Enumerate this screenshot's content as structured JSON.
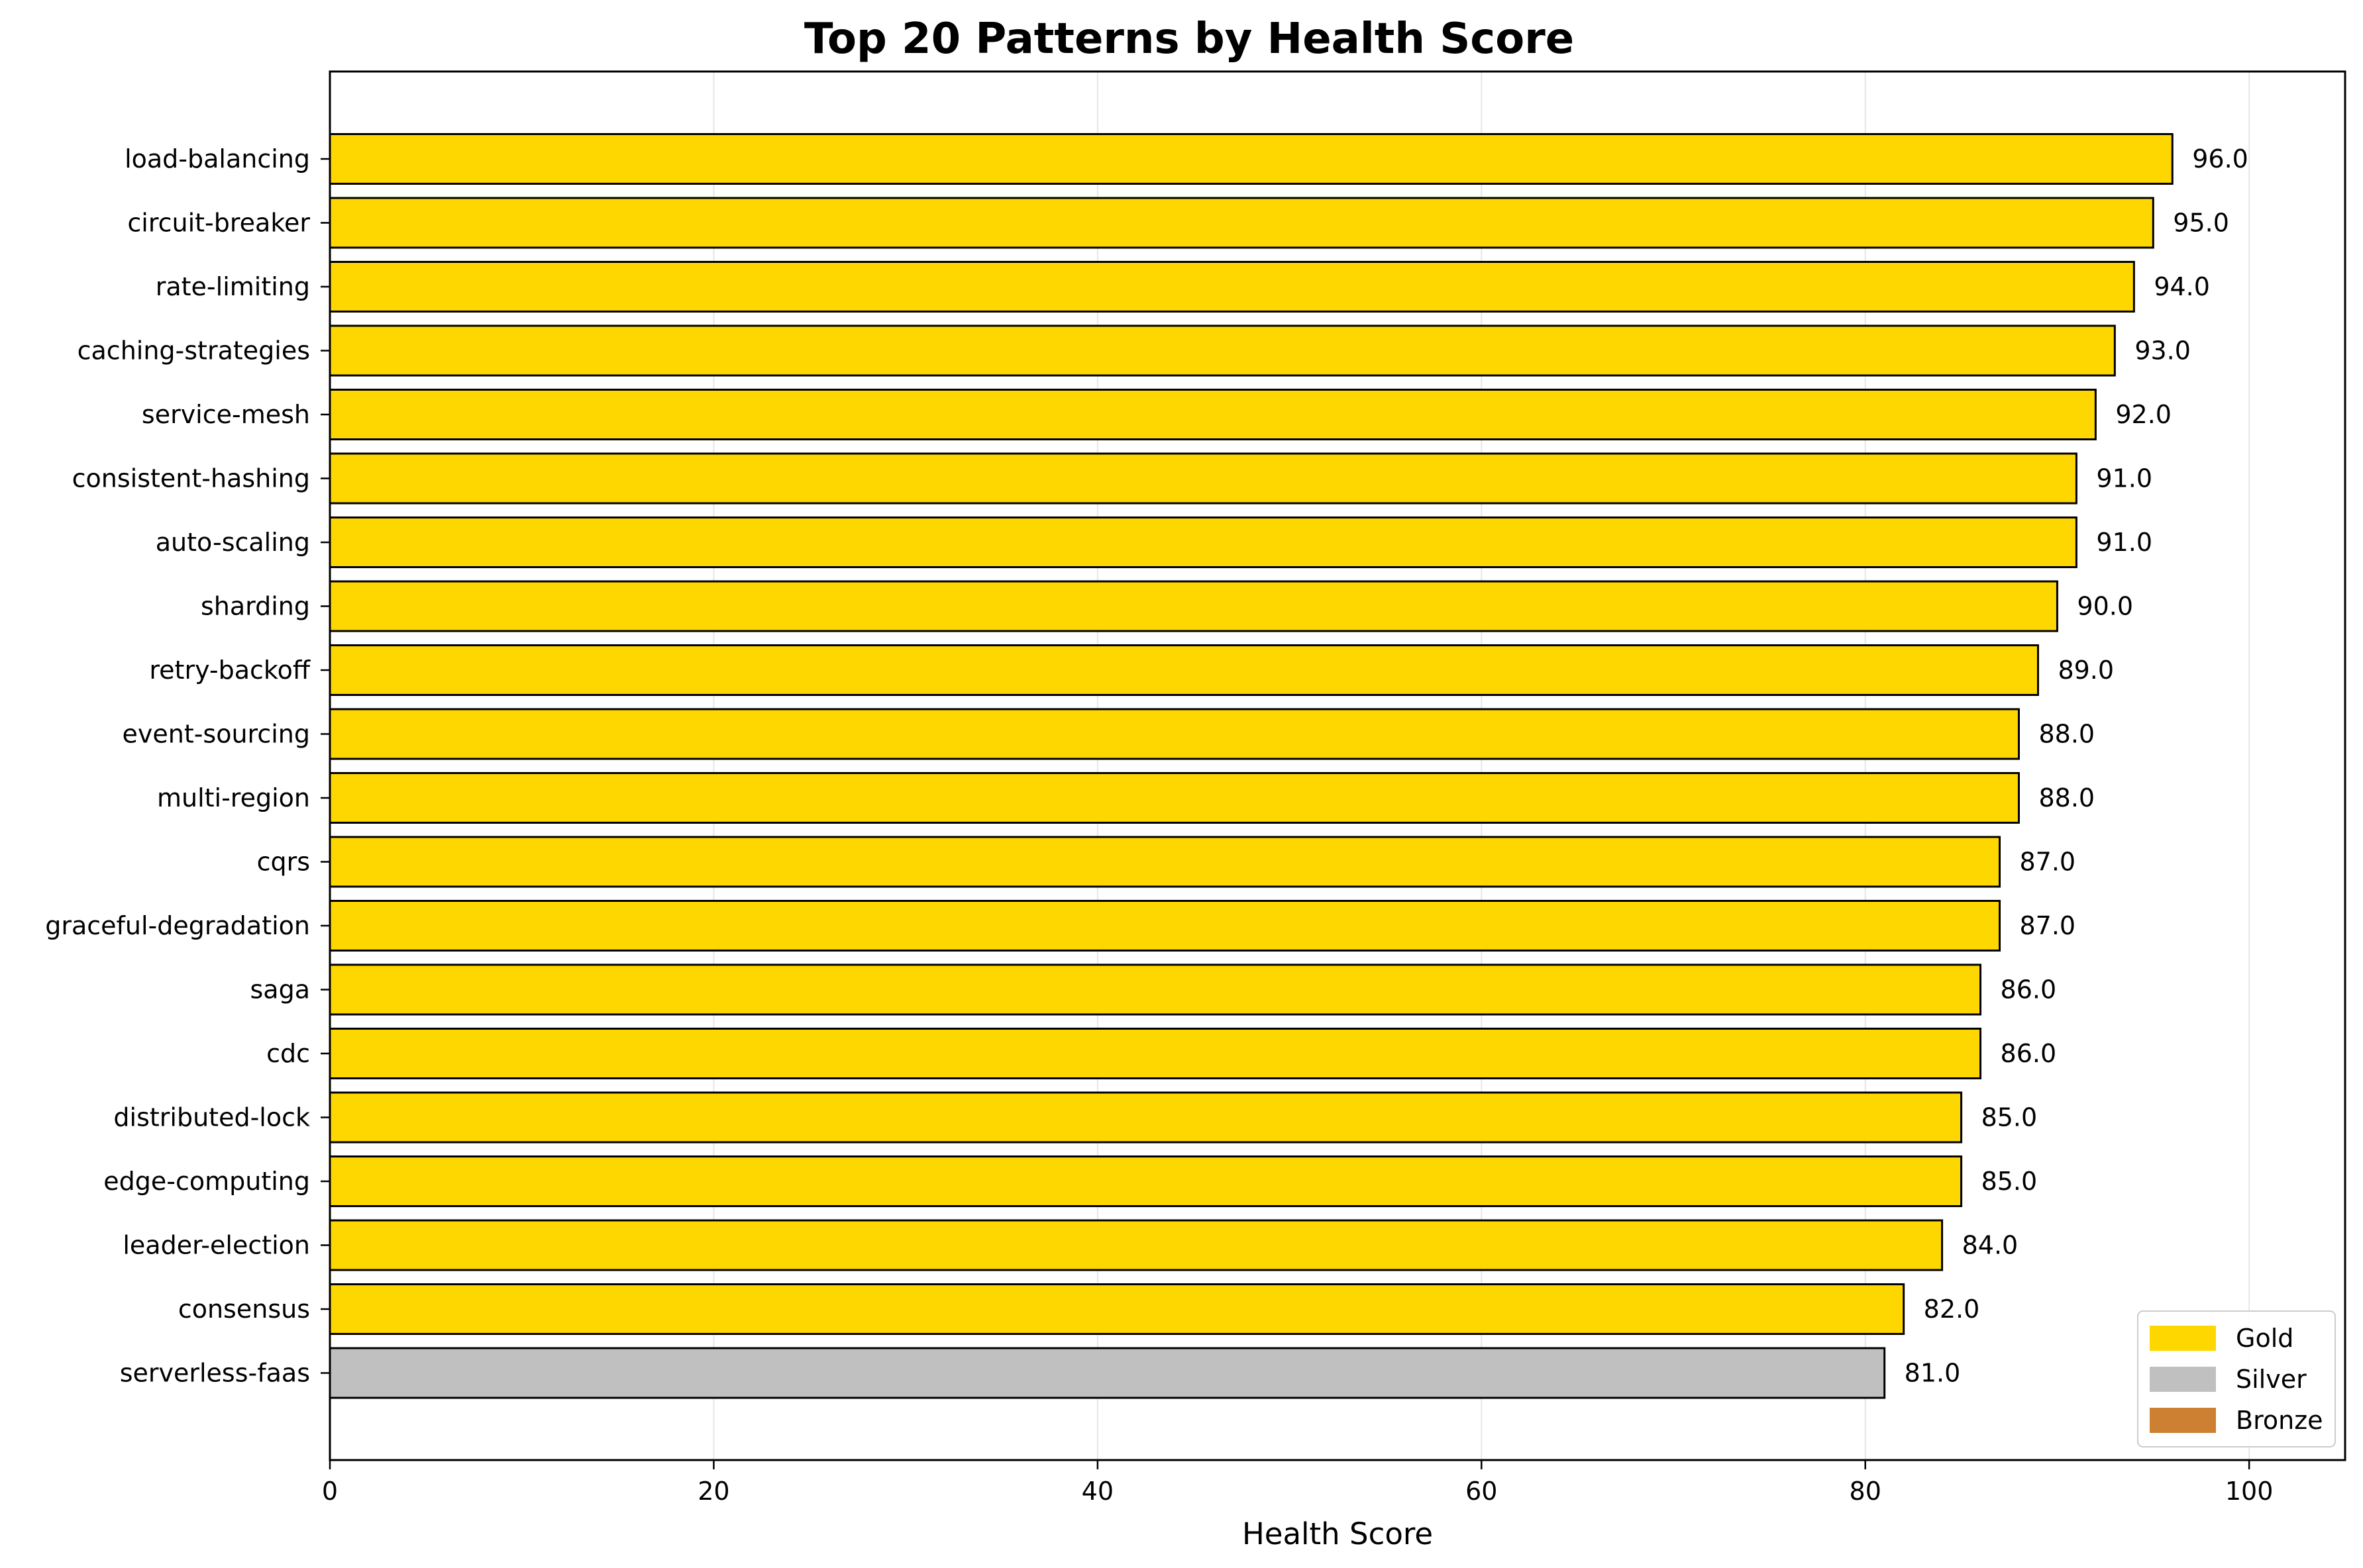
{
  "chart_data": {
    "type": "bar",
    "orientation": "horizontal",
    "title": "Top 20 Patterns by Health Score",
    "xlabel": "Health Score",
    "ylabel": "",
    "xlim": [
      0,
      105
    ],
    "xticks": [
      0,
      20,
      40,
      60,
      80,
      100
    ],
    "grid": "x",
    "legend_position": "bottom-right",
    "categories": [
      "load-balancing",
      "circuit-breaker",
      "rate-limiting",
      "caching-strategies",
      "service-mesh",
      "consistent-hashing",
      "auto-scaling",
      "sharding",
      "retry-backoff",
      "event-sourcing",
      "multi-region",
      "cqrs",
      "graceful-degradation",
      "saga",
      "cdc",
      "distributed-lock",
      "edge-computing",
      "leader-election",
      "consensus",
      "serverless-faas"
    ],
    "values": [
      96,
      95,
      94,
      93,
      92,
      91,
      91,
      90,
      89,
      88,
      88,
      87,
      87,
      86,
      86,
      85,
      85,
      84,
      82,
      81
    ],
    "value_labels": [
      "96.0",
      "95.0",
      "94.0",
      "93.0",
      "92.0",
      "91.0",
      "91.0",
      "90.0",
      "89.0",
      "88.0",
      "88.0",
      "87.0",
      "87.0",
      "86.0",
      "86.0",
      "85.0",
      "85.0",
      "84.0",
      "82.0",
      "81.0"
    ],
    "tiers": [
      "Gold",
      "Gold",
      "Gold",
      "Gold",
      "Gold",
      "Gold",
      "Gold",
      "Gold",
      "Gold",
      "Gold",
      "Gold",
      "Gold",
      "Gold",
      "Gold",
      "Gold",
      "Gold",
      "Gold",
      "Gold",
      "Gold",
      "Silver"
    ],
    "legend": [
      {
        "name": "Gold",
        "color": "#FFD700"
      },
      {
        "name": "Silver",
        "color": "#C0C0C0"
      },
      {
        "name": "Bronze",
        "color": "#CD7F32"
      }
    ]
  }
}
